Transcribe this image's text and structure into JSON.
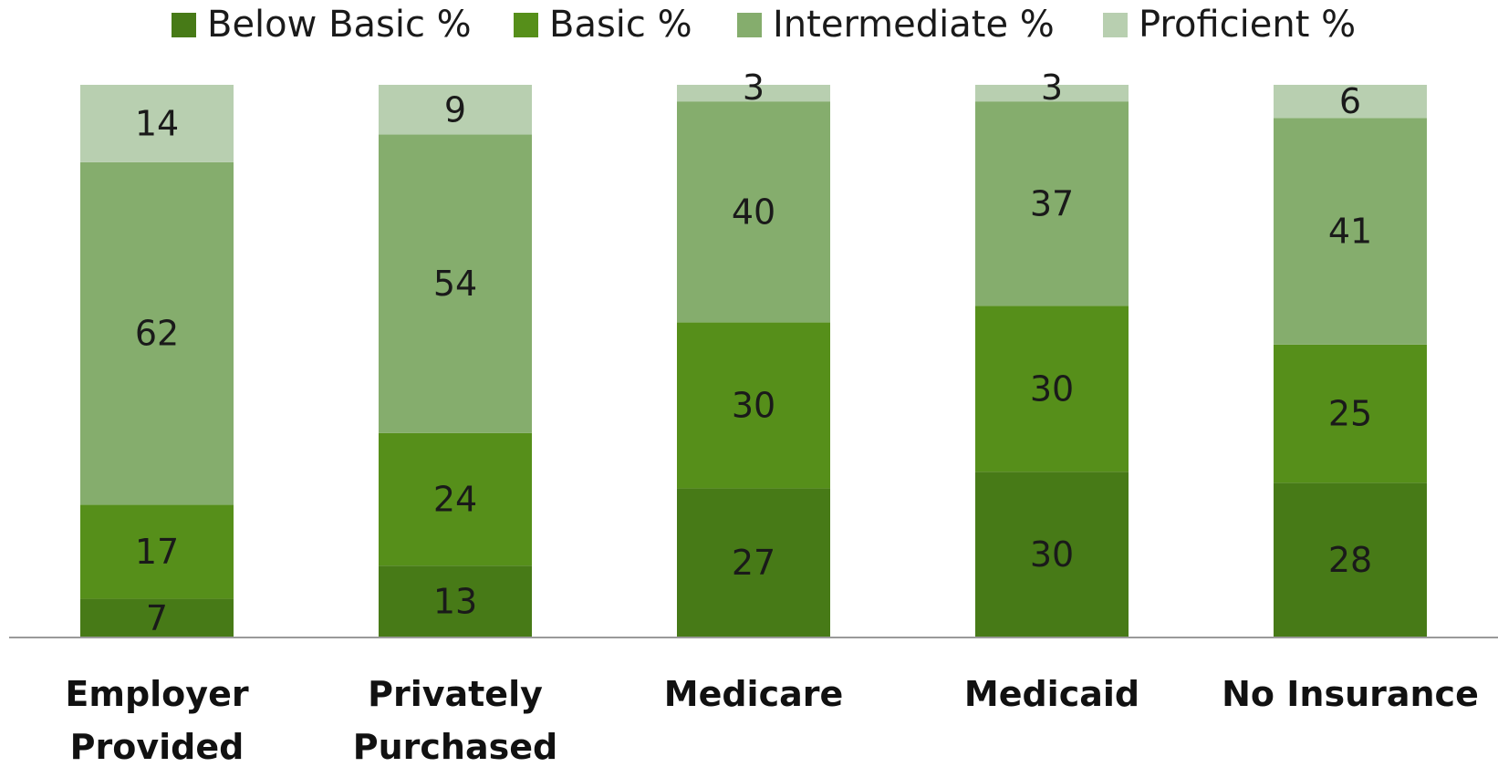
{
  "chart_data": {
    "type": "bar",
    "stacked": true,
    "categories": [
      [
        "Employer",
        "Provided"
      ],
      [
        "Privately",
        "Purchased"
      ],
      [
        "Medicare"
      ],
      [
        "Medicaid"
      ],
      [
        "No Insurance"
      ]
    ],
    "series": [
      {
        "name": "Below Basic %",
        "color": "#477a17",
        "values": [
          7,
          13,
          27,
          30,
          28
        ]
      },
      {
        "name": "Basic %",
        "color": "#568f1a",
        "values": [
          17,
          24,
          30,
          30,
          25
        ]
      },
      {
        "name": "Intermediate %",
        "color": "#85ad6d",
        "values": [
          62,
          54,
          40,
          37,
          41
        ]
      },
      {
        "name": "Proficient %",
        "color": "#b8cfb0",
        "values": [
          14,
          9,
          3,
          3,
          6
        ]
      }
    ],
    "ylim": [
      0,
      100
    ],
    "legend_position": "top",
    "grid": false,
    "axis_color": "#9a9a9a"
  }
}
